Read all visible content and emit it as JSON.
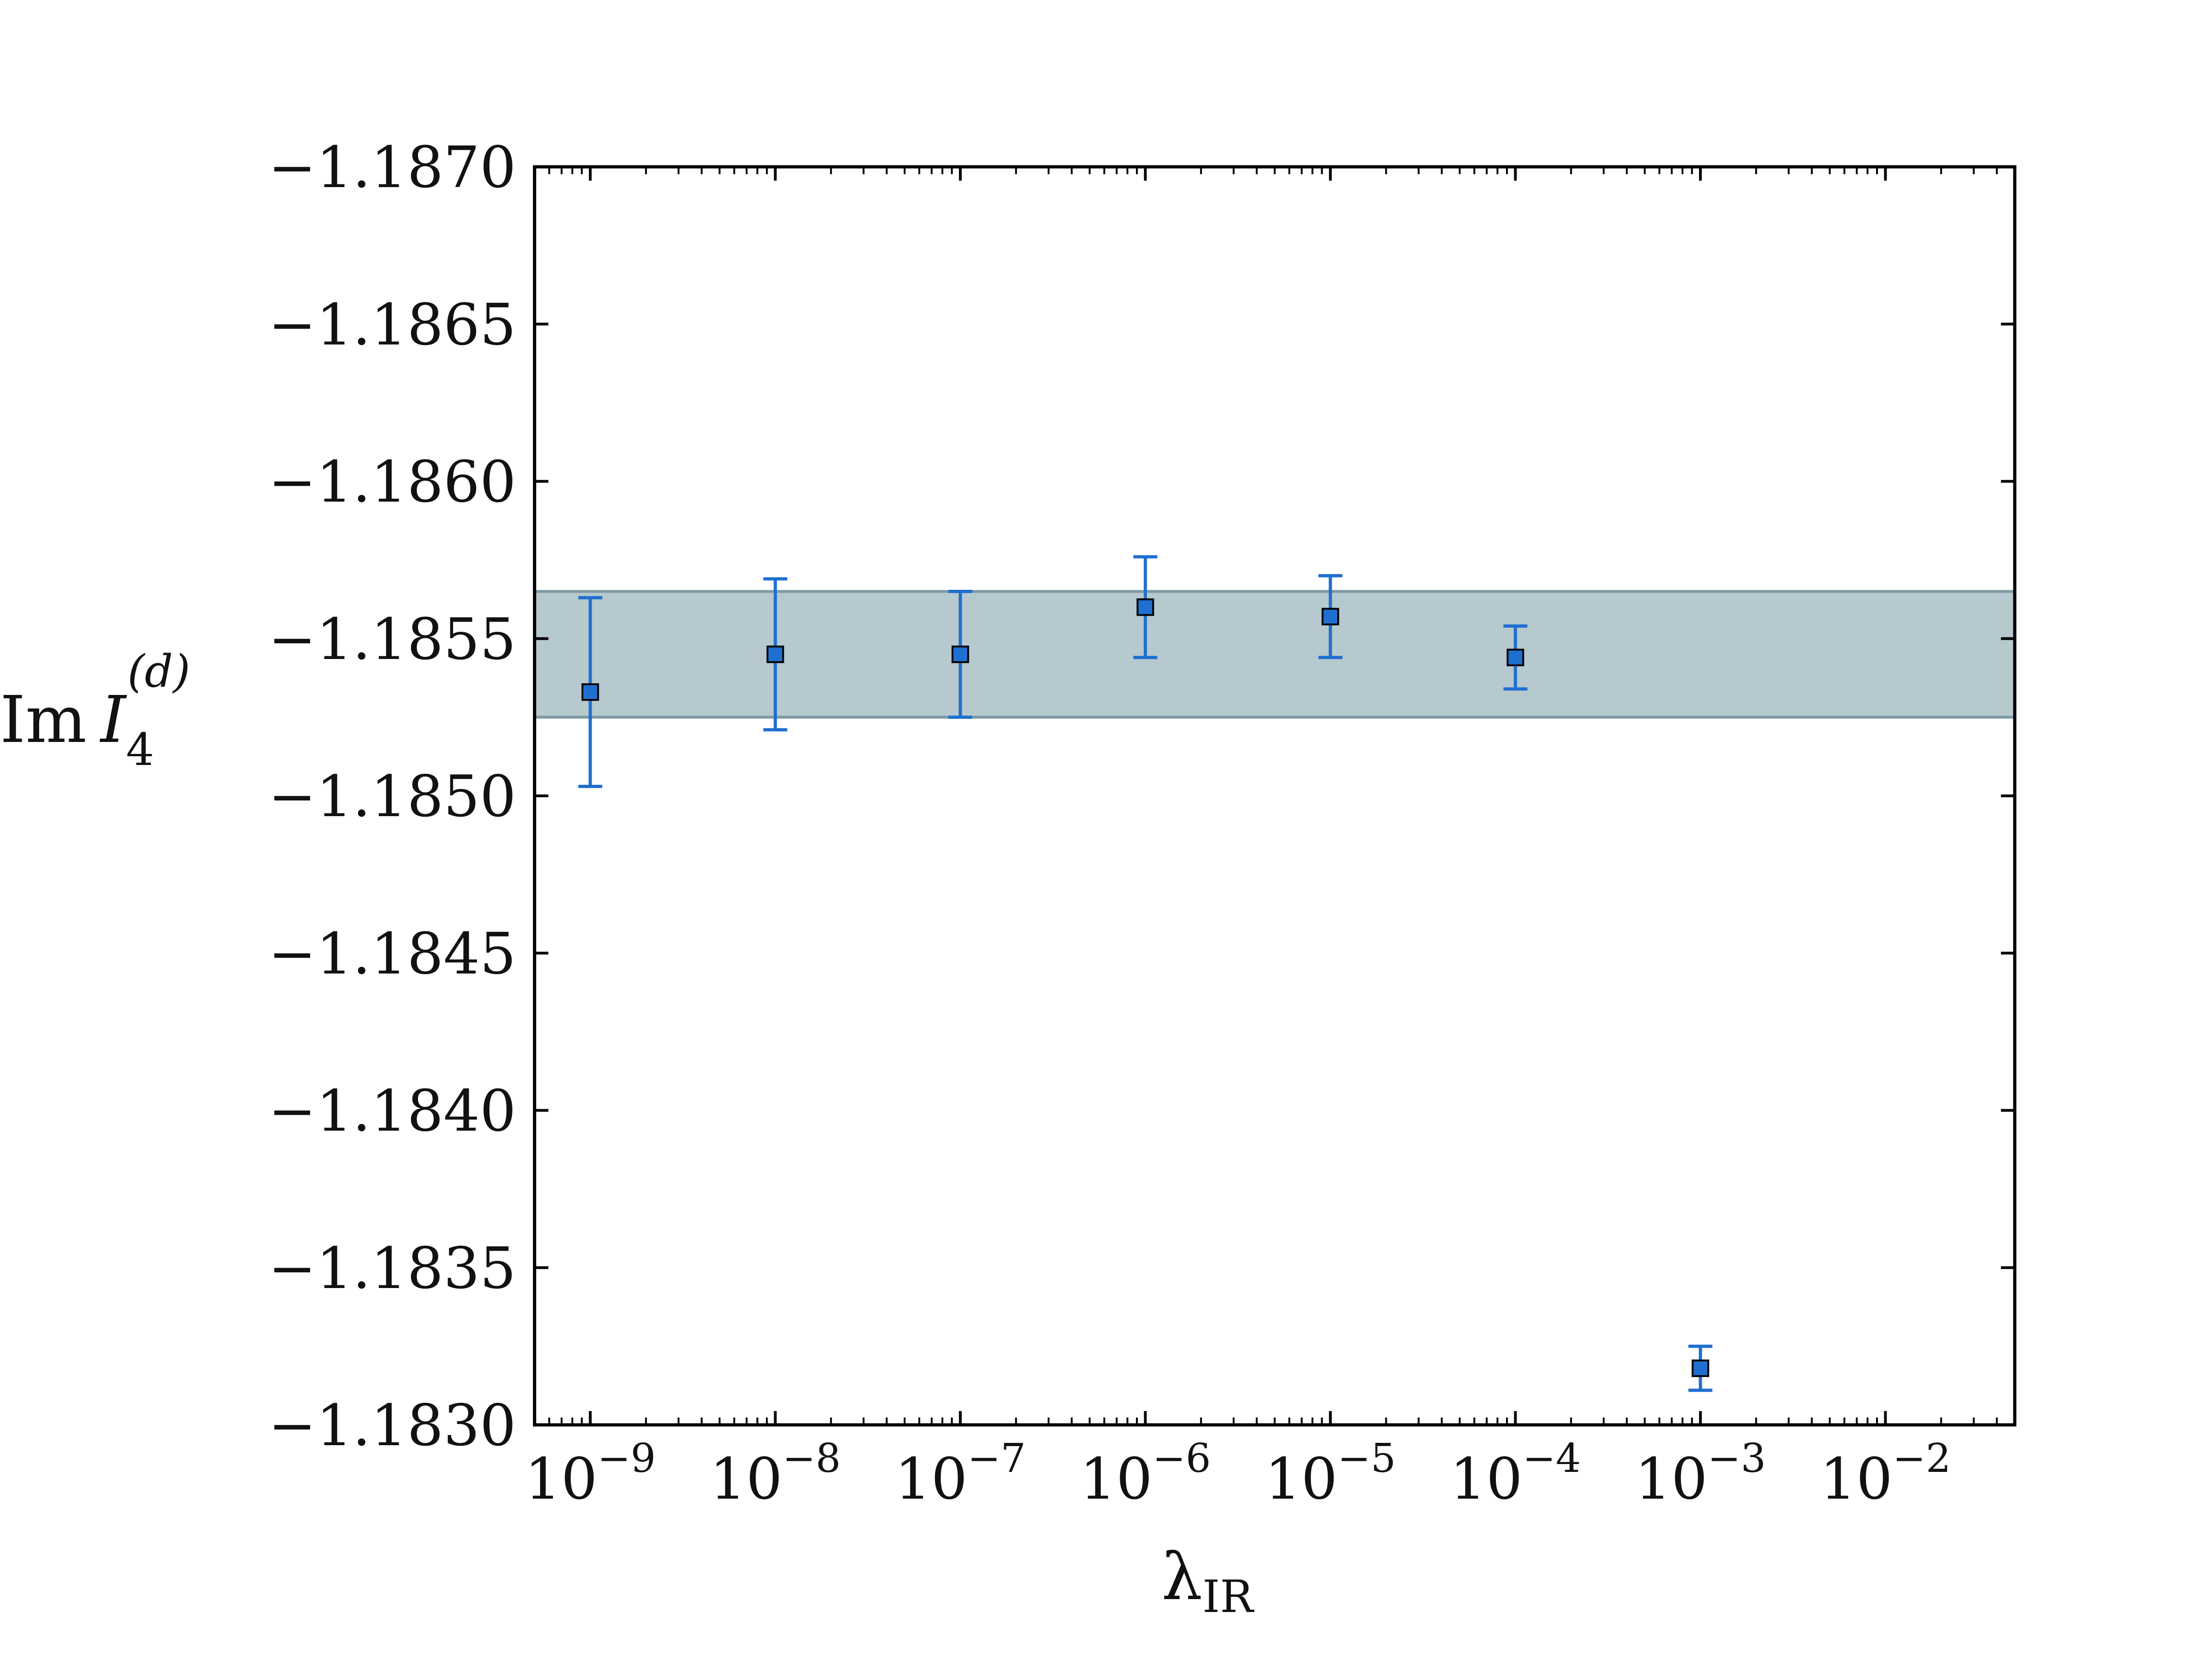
{
  "chart_data": {
    "type": "scatter",
    "title": "",
    "xlabel": {
      "base": "λ",
      "sub": "IR"
    },
    "ylabel": {
      "prefix": "Im",
      "var": "I",
      "sub": "4",
      "sup": "(d)"
    },
    "x_scale": "log",
    "xlim": [
      5e-10,
      0.05
    ],
    "ylim": [
      -1.183,
      -1.187
    ],
    "y_inverted": true,
    "x_ticks": [
      {
        "value": 1e-09,
        "base": "10",
        "exp": "−9"
      },
      {
        "value": 1e-08,
        "base": "10",
        "exp": "−8"
      },
      {
        "value": 1e-07,
        "base": "10",
        "exp": "−7"
      },
      {
        "value": 1e-06,
        "base": "10",
        "exp": "−6"
      },
      {
        "value": 1e-05,
        "base": "10",
        "exp": "−5"
      },
      {
        "value": 0.0001,
        "base": "10",
        "exp": "−4"
      },
      {
        "value": 0.001,
        "base": "10",
        "exp": "−3"
      },
      {
        "value": 0.01,
        "base": "10",
        "exp": "−2"
      }
    ],
    "y_ticks": [
      {
        "value": -1.187,
        "label": "−1.1870"
      },
      {
        "value": -1.1865,
        "label": "−1.1865"
      },
      {
        "value": -1.186,
        "label": "−1.1860"
      },
      {
        "value": -1.1855,
        "label": "−1.1855"
      },
      {
        "value": -1.185,
        "label": "−1.1850"
      },
      {
        "value": -1.1845,
        "label": "−1.1845"
      },
      {
        "value": -1.184,
        "label": "−1.1840"
      },
      {
        "value": -1.1835,
        "label": "−1.1835"
      },
      {
        "value": -1.183,
        "label": "−1.1830"
      }
    ],
    "band": {
      "y_low": -1.18525,
      "y_high": -1.18565
    },
    "points": [
      {
        "x": 1e-09,
        "y": -1.18533,
        "err": 0.0003
      },
      {
        "x": 1e-08,
        "y": -1.18545,
        "err": 0.00024
      },
      {
        "x": 1e-07,
        "y": -1.18545,
        "err": 0.0002
      },
      {
        "x": 1e-06,
        "y": -1.1856,
        "err": 0.00016
      },
      {
        "x": 1e-05,
        "y": -1.18557,
        "err": 0.00013
      },
      {
        "x": 0.0001,
        "y": -1.18544,
        "err": 0.0001
      },
      {
        "x": 0.001,
        "y": -1.18318,
        "err": 7e-05
      }
    ],
    "grid": false,
    "legend": "none",
    "colors": {
      "points": "#1f6fd0",
      "errorbars": "#1f6fd0",
      "band_fill": "#b6c9ce",
      "band_edge": "#7c99a2",
      "axes": "#000000"
    }
  }
}
